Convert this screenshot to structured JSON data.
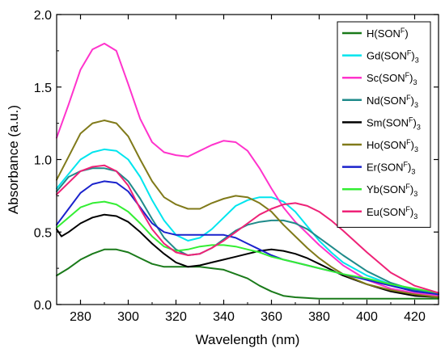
{
  "chart_data": {
    "type": "line",
    "xlabel": "Wavelength (nm)",
    "ylabel": "Absorbance (a.u.)",
    "xlim": [
      270,
      430
    ],
    "ylim": [
      0.0,
      2.0
    ],
    "x_ticks": [
      280,
      300,
      320,
      340,
      360,
      380,
      400,
      420
    ],
    "y_ticks": [
      "0.0",
      "0.5",
      "1.0",
      "1.5",
      "2.0"
    ],
    "grid": false,
    "legend_placement": "top-right",
    "series": [
      {
        "name": {
          "base": "H(SON",
          "sup": "F",
          "close": ")",
          "sub": ""
        },
        "color": "#1a7a1a",
        "x": [
          270,
          275,
          280,
          285,
          290,
          295,
          300,
          305,
          310,
          315,
          320,
          325,
          330,
          335,
          340,
          345,
          350,
          355,
          360,
          365,
          370,
          375,
          380,
          385,
          390,
          400,
          410,
          420,
          430
        ],
        "y": [
          0.2,
          0.25,
          0.31,
          0.35,
          0.38,
          0.38,
          0.36,
          0.32,
          0.28,
          0.26,
          0.26,
          0.26,
          0.26,
          0.25,
          0.24,
          0.21,
          0.18,
          0.13,
          0.09,
          0.06,
          0.05,
          0.045,
          0.04,
          0.04,
          0.04,
          0.04,
          0.04,
          0.04,
          0.04
        ]
      },
      {
        "name": {
          "base": "Gd(SON",
          "sup": "F",
          "close": ")",
          "sub": "3"
        },
        "color": "#00e5ee",
        "x": [
          270,
          275,
          280,
          285,
          290,
          295,
          300,
          305,
          310,
          315,
          320,
          325,
          330,
          335,
          340,
          345,
          350,
          355,
          360,
          365,
          370,
          375,
          380,
          385,
          390,
          400,
          410,
          420,
          430
        ],
        "y": [
          0.8,
          0.9,
          1.0,
          1.05,
          1.07,
          1.06,
          1.0,
          0.88,
          0.72,
          0.58,
          0.48,
          0.44,
          0.46,
          0.52,
          0.6,
          0.68,
          0.72,
          0.74,
          0.74,
          0.71,
          0.64,
          0.54,
          0.44,
          0.36,
          0.29,
          0.2,
          0.14,
          0.1,
          0.08
        ]
      },
      {
        "name": {
          "base": "Sc(SON",
          "sup": "F",
          "close": ")",
          "sub": "3"
        },
        "color": "#ff33cc",
        "x": [
          270,
          275,
          280,
          285,
          290,
          295,
          300,
          305,
          310,
          315,
          320,
          325,
          330,
          335,
          340,
          345,
          350,
          355,
          360,
          365,
          370,
          375,
          380,
          385,
          390,
          400,
          410,
          420,
          430
        ],
        "y": [
          1.15,
          1.38,
          1.62,
          1.76,
          1.8,
          1.75,
          1.52,
          1.28,
          1.12,
          1.05,
          1.03,
          1.02,
          1.06,
          1.1,
          1.13,
          1.12,
          1.06,
          0.94,
          0.8,
          0.67,
          0.57,
          0.49,
          0.41,
          0.34,
          0.27,
          0.17,
          0.11,
          0.08,
          0.06
        ]
      },
      {
        "name": {
          "base": "Nd(SON",
          "sup": "F",
          "close": ")",
          "sub": "3"
        },
        "color": "#1f8a8a",
        "x": [
          270,
          275,
          280,
          285,
          290,
          295,
          300,
          305,
          310,
          315,
          320,
          325,
          330,
          335,
          340,
          345,
          350,
          355,
          360,
          365,
          370,
          375,
          380,
          385,
          390,
          400,
          410,
          420,
          430
        ],
        "y": [
          0.78,
          0.88,
          0.92,
          0.94,
          0.94,
          0.92,
          0.85,
          0.73,
          0.59,
          0.46,
          0.38,
          0.34,
          0.35,
          0.39,
          0.45,
          0.51,
          0.55,
          0.57,
          0.58,
          0.58,
          0.56,
          0.52,
          0.46,
          0.4,
          0.34,
          0.23,
          0.15,
          0.1,
          0.07
        ]
      },
      {
        "name": {
          "base": "Sm(SON",
          "sup": "F",
          "close": ")",
          "sub": "3"
        },
        "color": "#000000",
        "x": [
          270,
          272,
          275,
          280,
          285,
          290,
          295,
          300,
          305,
          310,
          315,
          320,
          325,
          330,
          335,
          340,
          345,
          350,
          355,
          360,
          365,
          370,
          375,
          380,
          385,
          390,
          400,
          410,
          420,
          430
        ],
        "y": [
          0.52,
          0.47,
          0.5,
          0.56,
          0.6,
          0.62,
          0.61,
          0.57,
          0.5,
          0.42,
          0.35,
          0.29,
          0.26,
          0.27,
          0.29,
          0.31,
          0.33,
          0.35,
          0.37,
          0.38,
          0.37,
          0.35,
          0.32,
          0.28,
          0.24,
          0.2,
          0.14,
          0.09,
          0.06,
          0.05
        ]
      },
      {
        "name": {
          "base": "Ho(SON",
          "sup": "F",
          "close": ")",
          "sub": "3"
        },
        "color": "#807a1a",
        "x": [
          270,
          275,
          280,
          285,
          290,
          295,
          300,
          305,
          310,
          315,
          320,
          325,
          330,
          335,
          340,
          345,
          350,
          355,
          360,
          365,
          370,
          375,
          380,
          385,
          390,
          400,
          410,
          420,
          430
        ],
        "y": [
          0.86,
          1.02,
          1.18,
          1.25,
          1.27,
          1.25,
          1.16,
          1.0,
          0.85,
          0.74,
          0.69,
          0.66,
          0.66,
          0.7,
          0.73,
          0.75,
          0.74,
          0.7,
          0.64,
          0.55,
          0.47,
          0.39,
          0.32,
          0.26,
          0.21,
          0.14,
          0.1,
          0.07,
          0.05
        ]
      },
      {
        "name": {
          "base": "Er(SON",
          "sup": "F",
          "close": ")",
          "sub": "3"
        },
        "color": "#1a22cc",
        "x": [
          270,
          275,
          280,
          285,
          290,
          295,
          300,
          305,
          310,
          315,
          320,
          325,
          330,
          335,
          340,
          345,
          350,
          355,
          360,
          365,
          370,
          375,
          380,
          385,
          390,
          400,
          410,
          420,
          430
        ],
        "y": [
          0.55,
          0.66,
          0.77,
          0.83,
          0.85,
          0.84,
          0.78,
          0.67,
          0.56,
          0.5,
          0.48,
          0.48,
          0.48,
          0.48,
          0.48,
          0.46,
          0.42,
          0.38,
          0.34,
          0.31,
          0.29,
          0.27,
          0.25,
          0.23,
          0.21,
          0.17,
          0.13,
          0.09,
          0.07
        ]
      },
      {
        "name": {
          "base": "Yb(SON",
          "sup": "F",
          "close": ")",
          "sub": "3"
        },
        "color": "#33ee33",
        "x": [
          270,
          275,
          280,
          285,
          290,
          295,
          300,
          305,
          310,
          315,
          320,
          325,
          330,
          335,
          340,
          345,
          350,
          355,
          360,
          365,
          370,
          375,
          380,
          385,
          390,
          400,
          410,
          420,
          430
        ],
        "y": [
          0.53,
          0.6,
          0.67,
          0.7,
          0.71,
          0.69,
          0.64,
          0.56,
          0.47,
          0.4,
          0.37,
          0.38,
          0.4,
          0.41,
          0.41,
          0.4,
          0.38,
          0.36,
          0.33,
          0.31,
          0.29,
          0.27,
          0.25,
          0.23,
          0.21,
          0.18,
          0.14,
          0.11,
          0.08
        ]
      },
      {
        "name": {
          "base": "Eu(SON",
          "sup": "F",
          "close": ")",
          "sub": "3"
        },
        "color": "#ee2277",
        "x": [
          270,
          275,
          280,
          285,
          290,
          295,
          300,
          305,
          310,
          315,
          320,
          325,
          330,
          335,
          340,
          345,
          350,
          355,
          360,
          365,
          370,
          375,
          380,
          385,
          390,
          400,
          410,
          420,
          430
        ],
        "y": [
          0.76,
          0.84,
          0.92,
          0.95,
          0.96,
          0.92,
          0.82,
          0.66,
          0.52,
          0.42,
          0.36,
          0.34,
          0.35,
          0.39,
          0.44,
          0.5,
          0.56,
          0.62,
          0.66,
          0.69,
          0.7,
          0.68,
          0.64,
          0.58,
          0.51,
          0.36,
          0.22,
          0.13,
          0.08
        ]
      }
    ]
  }
}
